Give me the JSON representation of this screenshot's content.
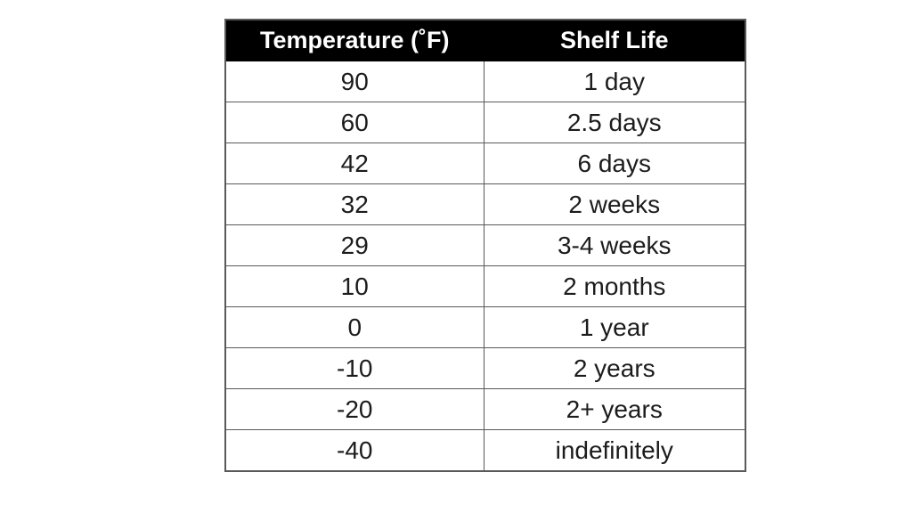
{
  "page": {
    "background_color": "#ffffff"
  },
  "table": {
    "header_bg_color": "#000000",
    "header_text_color": "#ffffff",
    "border_color": "#595959",
    "cell_text_color": "#1c1c1c",
    "columns": [
      {
        "label": "Temperature (˚F)"
      },
      {
        "label": "Shelf Life"
      }
    ],
    "rows": [
      {
        "temperature": "90",
        "shelf_life": "1 day"
      },
      {
        "temperature": "60",
        "shelf_life": "2.5 days"
      },
      {
        "temperature": "42",
        "shelf_life": "6 days"
      },
      {
        "temperature": "32",
        "shelf_life": "2 weeks"
      },
      {
        "temperature": "29",
        "shelf_life": "3-4 weeks"
      },
      {
        "temperature": "10",
        "shelf_life": "2 months"
      },
      {
        "temperature": "0",
        "shelf_life": "1 year"
      },
      {
        "temperature": "-10",
        "shelf_life": "2 years"
      },
      {
        "temperature": "-20",
        "shelf_life": "2+ years"
      },
      {
        "temperature": "-40",
        "shelf_life": "indefinitely"
      }
    ]
  },
  "chart_data": {
    "type": "table",
    "title": "",
    "columns": [
      "Temperature (˚F)",
      "Shelf Life"
    ],
    "rows": [
      [
        "90",
        "1 day"
      ],
      [
        "60",
        "2.5 days"
      ],
      [
        "42",
        "6 days"
      ],
      [
        "32",
        "2 weeks"
      ],
      [
        "29",
        "3-4 weeks"
      ],
      [
        "10",
        "2 months"
      ],
      [
        "0",
        "1 year"
      ],
      [
        "-10",
        "2 years"
      ],
      [
        "-20",
        "2+ years"
      ],
      [
        "-40",
        "indefinitely"
      ]
    ],
    "temperatures_f": [
      90,
      60,
      42,
      32,
      29,
      10,
      0,
      -10,
      -20,
      -40
    ],
    "layout": {
      "header_style": "black band, white bold text",
      "grid": "on",
      "alignment": "center"
    }
  }
}
